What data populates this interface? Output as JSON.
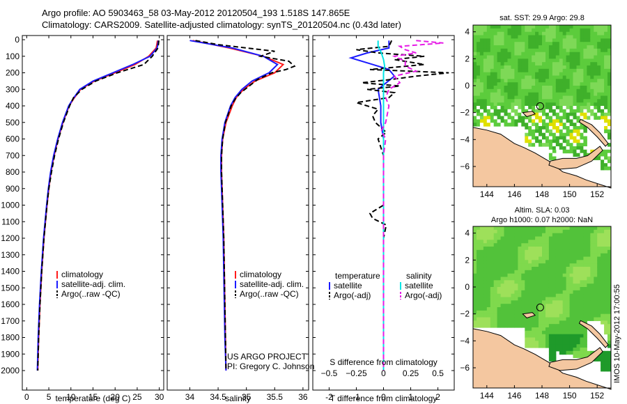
{
  "header": {
    "line1": "Argo profile: AO 5903463_58 03-May-2012 20120504_193 1.518S 147.865E",
    "line2": "Climatology: CARS2009. Satellite-adjusted climatology: synTS_20120504.nc (0.43d later)"
  },
  "stamp": "IMOS 10-May-2012 17:00:55",
  "project": {
    "line1": "US ARGO PROJECT",
    "line2": "PI: Gregory C. Johnson"
  },
  "colors": {
    "climatology": "#ff1a1a",
    "satellite": "#1a1aff",
    "argo": "#000000",
    "sal_sat": "#00e5e5",
    "sal_argo": "#e61ae6",
    "land": "#f4c7a0",
    "missing": "#ffffff"
  },
  "chart_data": [
    {
      "id": "temperature",
      "type": "line",
      "xlabel": "temperature (deg C)",
      "ylabel": "",
      "xlim": [
        -1,
        31
      ],
      "ylim": [
        2050,
        0
      ],
      "y_reversed": true,
      "xticks": [
        0,
        5,
        10,
        15,
        20,
        25,
        30
      ],
      "yticks": [
        0,
        100,
        200,
        300,
        400,
        500,
        600,
        700,
        800,
        900,
        1000,
        1100,
        1200,
        1300,
        1400,
        1500,
        1600,
        1700,
        1800,
        1900,
        2000
      ],
      "legend": {
        "placement": "lower-left",
        "entries": [
          "climatology",
          "satellite-adj. clim.",
          "Argo(..raw -QC)"
        ]
      },
      "series": [
        {
          "name": "climatology",
          "color": "#ff1a1a",
          "style": "solid",
          "depth": [
            5,
            50,
            100,
            150,
            200,
            250,
            300,
            350,
            400,
            500,
            600,
            700,
            800,
            900,
            1000,
            1200,
            1400,
            1600,
            1800,
            2000
          ],
          "values": [
            29.6,
            29.3,
            27.6,
            24.5,
            20.0,
            15.3,
            12.2,
            10.8,
            9.6,
            8.2,
            7.1,
            6.2,
            5.5,
            5.0,
            4.6,
            3.9,
            3.4,
            3.0,
            2.7,
            2.5
          ]
        },
        {
          "name": "satellite-adj. clim.",
          "color": "#1a1aff",
          "style": "solid",
          "depth": [
            5,
            50,
            100,
            150,
            200,
            250,
            300,
            350,
            400,
            500,
            600,
            700,
            800,
            900,
            1000,
            1200,
            1400,
            1600,
            1800,
            2000
          ],
          "values": [
            29.8,
            29.5,
            27.9,
            24.0,
            19.5,
            15.0,
            12.0,
            10.7,
            9.5,
            8.1,
            7.0,
            6.1,
            5.4,
            4.9,
            4.5,
            3.8,
            3.3,
            2.9,
            2.6,
            2.4
          ]
        },
        {
          "name": "Argo(..raw -QC)",
          "color": "#000000",
          "style": "dashed",
          "depth": [
            5,
            50,
            100,
            150,
            200,
            250,
            300,
            350,
            400,
            500,
            600,
            700,
            800,
            900,
            1000,
            1200,
            1400,
            1600,
            1800,
            2000
          ],
          "values": [
            29.9,
            29.7,
            28.4,
            26.5,
            20.5,
            15.6,
            12.5,
            10.6,
            9.7,
            8.3,
            7.2,
            6.3,
            5.6,
            5.0,
            4.6,
            3.9,
            3.4,
            3.0,
            2.7,
            2.5
          ]
        }
      ]
    },
    {
      "id": "salinity",
      "type": "line",
      "xlabel": "salinity",
      "ylabel": "",
      "xlim": [
        33.6,
        36.1
      ],
      "ylim": [
        2050,
        0
      ],
      "y_reversed": true,
      "xticks": [
        34,
        34.5,
        35,
        35.5,
        36
      ],
      "xticklabels": [
        "34",
        "34.5",
        "35",
        "35.5",
        "36"
      ],
      "legend": {
        "placement": "lower-left",
        "entries": [
          "climatology",
          "satellite-adj. clim.",
          "Argo(..raw -QC)"
        ]
      },
      "series": [
        {
          "name": "climatology",
          "color": "#ff1a1a",
          "style": "solid",
          "depth": [
            5,
            50,
            100,
            150,
            200,
            250,
            300,
            350,
            400,
            500,
            600,
            700,
            800,
            900,
            1000,
            1200,
            1400,
            1600,
            1800,
            2000
          ],
          "values": [
            34.05,
            34.7,
            35.3,
            35.65,
            35.5,
            35.15,
            34.95,
            34.82,
            34.75,
            34.64,
            34.58,
            34.56,
            34.56,
            34.57,
            34.58,
            34.6,
            34.61,
            34.62,
            34.63,
            34.64
          ]
        },
        {
          "name": "satellite-adj. clim.",
          "color": "#1a1aff",
          "style": "solid",
          "depth": [
            5,
            50,
            100,
            150,
            200,
            250,
            300,
            350,
            400,
            500,
            600,
            700,
            800,
            900,
            1000,
            1200,
            1400,
            1600,
            1800,
            2000
          ],
          "values": [
            34.0,
            34.75,
            35.3,
            35.55,
            35.4,
            35.1,
            34.92,
            34.8,
            34.72,
            34.62,
            34.57,
            34.55,
            34.55,
            34.56,
            34.57,
            34.59,
            34.6,
            34.61,
            34.62,
            34.64
          ]
        },
        {
          "name": "Argo(..raw -QC)",
          "color": "#000000",
          "style": "dashed",
          "depth": [
            5,
            30,
            70,
            100,
            130,
            160,
            180,
            200,
            240,
            280,
            320,
            360,
            400,
            500,
            600,
            700,
            800,
            900,
            1000,
            1200,
            1400,
            1600,
            1800,
            2000
          ],
          "values": [
            34.1,
            34.5,
            35.5,
            35.25,
            35.75,
            35.85,
            35.7,
            35.45,
            35.2,
            35.05,
            34.9,
            34.8,
            34.73,
            34.63,
            34.58,
            34.56,
            34.56,
            34.57,
            34.58,
            34.6,
            34.61,
            34.62,
            34.63,
            34.64
          ]
        }
      ]
    },
    {
      "id": "differences",
      "type": "line",
      "xlabel": "T difference from climatology",
      "x2label": "S difference from climatology",
      "xlim": [
        -2.6,
        2.6
      ],
      "ylim": [
        2050,
        0
      ],
      "y_reversed": true,
      "xticks": [
        -2,
        -1,
        0,
        1,
        2
      ],
      "x2ticks": [
        -0.5,
        -0.25,
        0,
        0.25,
        0.5
      ],
      "x2ticklabels": [
        "−0.5",
        "−0.25",
        "0",
        "0.25",
        "0.5"
      ],
      "legend": {
        "placement": "lower-center",
        "headers": [
          "temperature",
          "salinity"
        ],
        "entries": [
          "satellite",
          "Argo(-adj)",
          "satellite",
          "Argo(-adj)"
        ]
      },
      "series": [
        {
          "name": "temperature satellite",
          "color": "#1a1aff",
          "style": "solid",
          "axis": "T",
          "depth": [
            5,
            50,
            80,
            110,
            150,
            180,
            220,
            260,
            300,
            400,
            500,
            600,
            800,
            1000,
            1500,
            2000
          ],
          "values": [
            0.2,
            0.2,
            -0.6,
            -1.2,
            -0.4,
            0.2,
            0.4,
            0.1,
            -0.2,
            -0.1,
            -0.1,
            0,
            0,
            0,
            0,
            0
          ]
        },
        {
          "name": "temperature Argo(-adj)",
          "color": "#000000",
          "style": "dashed",
          "axis": "T",
          "depth": [
            5,
            40,
            60,
            80,
            100,
            120,
            150,
            180,
            200,
            220,
            240,
            260,
            280,
            300,
            320,
            350,
            380,
            420,
            460,
            500,
            560,
            600,
            650,
            700,
            800,
            900,
            1000,
            1050,
            1080,
            1120,
            1200,
            1400,
            1600,
            1800,
            2000
          ],
          "values": [
            0.3,
            0.2,
            -1.0,
            -0.2,
            1.5,
            0.4,
            1.5,
            -0.5,
            2.4,
            1.2,
            0.3,
            -0.8,
            0.6,
            -0.6,
            0.4,
            0.2,
            -1.0,
            -0.2,
            -0.4,
            -0.3,
            0.1,
            -0.2,
            -0.1,
            0,
            0,
            0,
            0,
            -0.5,
            -0.4,
            0.1,
            0,
            0,
            0,
            0,
            0
          ]
        },
        {
          "name": "salinity satellite",
          "color": "#00e5e5",
          "style": "solid",
          "axis": "S",
          "depth": [
            5,
            40,
            80,
            120,
            160,
            200,
            300,
            400,
            600,
            800,
            1000,
            1500,
            2000
          ],
          "values": [
            -0.05,
            -0.05,
            -0.02,
            0,
            0.01,
            0,
            0,
            0,
            0,
            0,
            0,
            0,
            0
          ]
        },
        {
          "name": "salinity Argo(-adj)",
          "color": "#e61ae6",
          "style": "dashed",
          "axis": "S",
          "depth": [
            5,
            20,
            40,
            60,
            80,
            100,
            130,
            160,
            190,
            220,
            260,
            300,
            350,
            400,
            500,
            550,
            600,
            700,
            800,
            1000,
            1400,
            1700,
            2000
          ],
          "values": [
            0.3,
            0.55,
            0.15,
            0.2,
            0.3,
            0.1,
            0.2,
            0.2,
            0.3,
            0.1,
            0.15,
            0.05,
            0.02,
            0.05,
            0.02,
            -0.02,
            0.02,
            0,
            0,
            0,
            0,
            0,
            0
          ]
        }
      ]
    },
    {
      "id": "sst_map",
      "type": "heatmap",
      "title": "sat. SST: 29.9  Argo: 29.8",
      "xlim": [
        143,
        153
      ],
      "ylim": [
        -7.5,
        4.5
      ],
      "xticks": [
        144,
        146,
        148,
        150,
        152
      ],
      "yticks": [
        -6,
        -4,
        -2,
        0,
        2,
        4
      ],
      "yticklabels": [
        "−6",
        "−4",
        "−2",
        "0",
        "2",
        "4"
      ],
      "float_position": [
        147.865,
        -1.518
      ]
    },
    {
      "id": "sla_map",
      "type": "heatmap",
      "title": "Altim. SLA: 0.03",
      "subtitle": "Argo h1000: 0.07 h2000: NaN",
      "xlim": [
        143,
        153
      ],
      "ylim": [
        -7.5,
        4.5
      ],
      "xticks": [
        144,
        146,
        148,
        150,
        152
      ],
      "yticks": [
        -6,
        -4,
        -2,
        0,
        2,
        4
      ],
      "yticklabels": [
        "−6",
        "−4",
        "−2",
        "0",
        "2",
        "4"
      ],
      "float_position": [
        147.865,
        -1.518
      ]
    }
  ]
}
